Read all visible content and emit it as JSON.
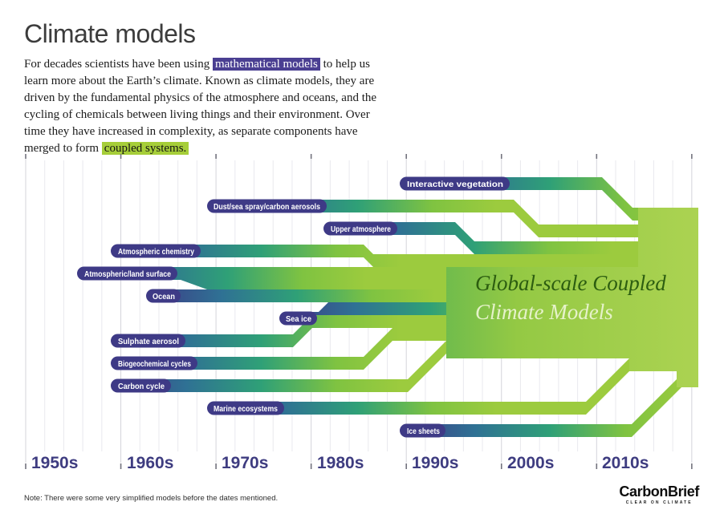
{
  "header": {
    "title": "Climate models",
    "intro": {
      "part1": "For decades scientists have been using ",
      "highlight1": "mathematical models",
      "part2": " to help us learn more about the Earth’s climate. Known as climate models, they are driven by the fundamental physics of the atmosphere and oceans, and the cycling of chemicals between living things and their environment. Over time they have increased in complexity, as separate components have merged to form ",
      "highlight2": "coupled systems."
    }
  },
  "chart_data": {
    "type": "area",
    "x_axis": [
      "1950s",
      "1960s",
      "1970s",
      "1980s",
      "1990s",
      "2000s",
      "2010s"
    ],
    "bands": [
      {
        "label": "Interactive vegetation",
        "start_year_approx": 1990
      },
      {
        "label": "Dust/sea spray/carbon aerosols",
        "start_year_approx": 1969
      },
      {
        "label": "Upper atmosphere",
        "start_year_approx": 1981
      },
      {
        "label": "Atmospheric chemistry",
        "start_year_approx": 1959
      },
      {
        "label": "Atmospheric/land surface",
        "start_year_approx": 1955
      },
      {
        "label": "Ocean",
        "start_year_approx": 1963
      },
      {
        "label": "Sea ice",
        "start_year_approx": 1977
      },
      {
        "label": "Sulphate aerosol",
        "start_year_approx": 1959
      },
      {
        "label": "Biogeochemical cycles",
        "start_year_approx": 1959
      },
      {
        "label": "Carbon cycle",
        "start_year_approx": 1959
      },
      {
        "label": "Marine ecosystems",
        "start_year_approx": 1969
      },
      {
        "label": "Ice sheets",
        "start_year_approx": 1990
      }
    ],
    "merge_target": {
      "line1": "Global-scale Coupled",
      "line2": "Climate Models"
    },
    "colors": {
      "band_start": "#3E3A86",
      "band_mid": "#2FA077",
      "band_end": "#9CCB3E",
      "block": "#A8D04C",
      "purple_highlight": "#4A3F92",
      "green_highlight": "#A6CE39"
    }
  },
  "footer": {
    "note": "Note: There were some very simplified models before the dates mentioned.",
    "logo": {
      "name": "CarbonBrief",
      "tagline": "CLEAR ON CLIMATE"
    }
  }
}
